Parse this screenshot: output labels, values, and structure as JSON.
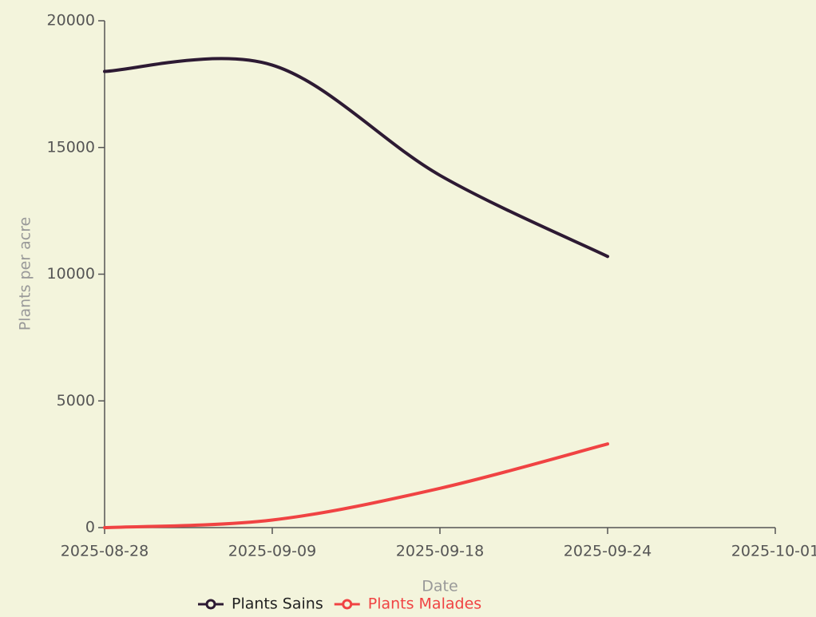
{
  "chart_data": {
    "type": "line",
    "x_label": "Date",
    "y_label": "Plants per acre",
    "categories": [
      "2025-08-28",
      "2025-09-09",
      "2025-09-18",
      "2025-09-24",
      "2025-10-01"
    ],
    "series": [
      {
        "name": "Plants Sains",
        "color": "#2d1a33",
        "values": [
          18000,
          18250,
          13900,
          10700,
          null
        ]
      },
      {
        "name": "Plants Malades",
        "color": "#f04343",
        "values": [
          0,
          300,
          1550,
          3300,
          null
        ]
      }
    ],
    "ylim": [
      0,
      20000
    ],
    "yticks": [
      0,
      5000,
      10000,
      15000,
      20000
    ],
    "legend": "bottom"
  }
}
